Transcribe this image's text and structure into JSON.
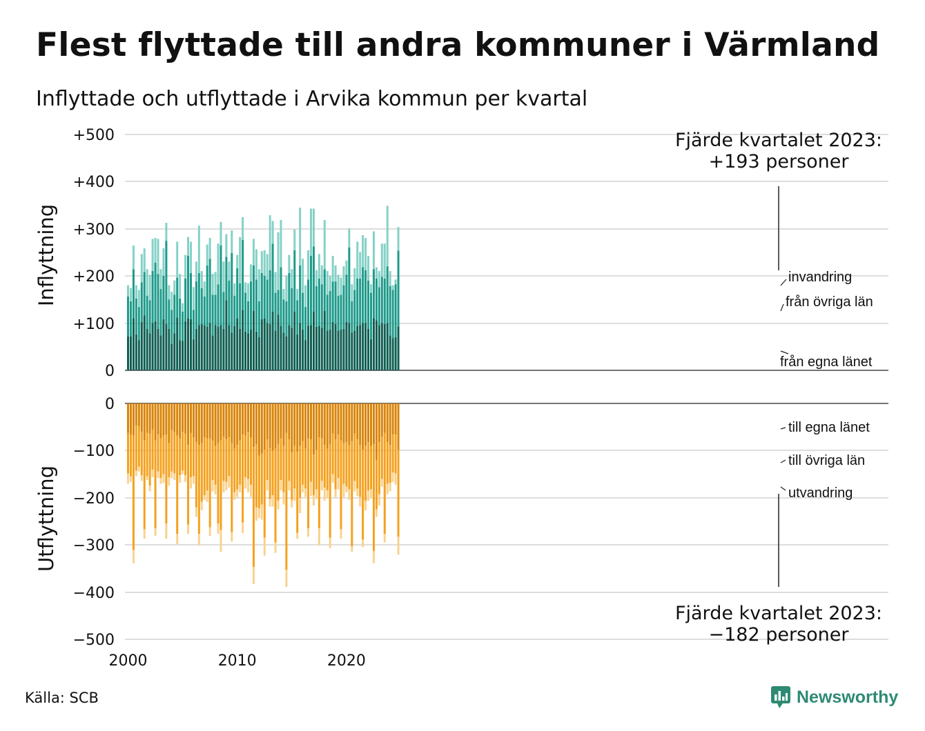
{
  "title": "Flest flyttade till andra kommuner i Värmland",
  "subtitle": "Inflyttade och utflyttade i Arvika kommun per kvartal",
  "source": "Källa: SCB",
  "brand": "Newsworthy",
  "colors": {
    "in_lan": "#0f5e52",
    "in_ovriga": "#1e9a8a",
    "in_invandring": "#85d1c6",
    "out_lan": "#d98407",
    "out_ovriga": "#f4a11e",
    "out_utvandring": "#f9d28f",
    "grid": "#dddddd",
    "brand": "#2e8a73"
  },
  "chart_data": {
    "type": "bar",
    "stacked": true,
    "x_start": "2000 Q1",
    "frequency": "quarterly",
    "x_ticks": [
      "2000",
      "2010",
      "2020"
    ],
    "grid": true,
    "panels": [
      {
        "ylabel": "Inflyttning",
        "y_ticks": [
          "+500",
          "+400",
          "+300",
          "+200",
          "+100",
          "0"
        ],
        "ylim": [
          0,
          500
        ],
        "series": [
          {
            "name": "från egna länet",
            "color_key": "in_lan",
            "values": [
              72,
              72,
              110,
              76,
              64,
              102,
              116,
              88,
              78,
              100,
              104,
              88,
              74,
              108,
              98,
              88,
              56,
              78,
              112,
              64,
              62,
              104,
              110,
              108,
              66,
              88,
              96,
              98,
              96,
              92,
              100,
              74,
              96,
              92,
              96,
              88,
              148,
              96,
              80,
              94,
              110,
              88,
              128,
              82,
              78,
              86,
              126,
              82,
              70,
              108,
              110,
              100,
              98,
              124,
              84,
              118,
              94,
              80,
              72,
              96,
              90,
              124,
              76,
              100,
              86,
              64,
              94,
              96,
              124,
              92,
              94,
              90,
              126,
              84,
              86,
              102,
              98,
              84,
              86,
              88,
              102,
              100,
              80,
              84,
              94,
              96,
              100,
              100,
              88,
              66,
              110,
              106,
              96,
              100,
              98,
              100,
              74,
              68,
              70,
              93
            ]
          },
          {
            "name": "från övriga län",
            "color_key": "in_ovriga",
            "values": [
              84,
              74,
              104,
              76,
              70,
              84,
              92,
              70,
              70,
              110,
              124,
              116,
              98,
              92,
              176,
              62,
              72,
              82,
              84,
              88,
              62,
              90,
              132,
              98,
              62,
              100,
              110,
              76,
              60,
              130,
              136,
              86,
              64,
              90,
              168,
              78,
              92,
              94,
              168,
              64,
              106,
              96,
              148,
              82,
              68,
              102,
              96,
              110,
              76,
              98,
              90,
              92,
              114,
              144,
              80,
              52,
              124,
              70,
              74,
              110,
              84,
              130,
              72,
              122,
              78,
              70,
              98,
              146,
              138,
              86,
              100,
              92,
              88,
              76,
              82,
              86,
              90,
              74,
              74,
              92,
              100,
              160,
              66,
              86,
              100,
              98,
              118,
              112,
              102,
              98,
              104,
              88,
              80,
              98,
              96,
              120,
              104,
              102,
              112,
              160
            ]
          },
          {
            "name": "invandring",
            "color_key": "in_invandring",
            "values": [
              24,
              28,
              50,
              28,
              36,
              60,
              50,
              56,
              54,
              68,
              52,
              74,
              42,
              58,
              38,
              30,
              38,
              30,
              76,
              52,
              18,
              50,
              40,
              66,
              48,
              42,
              100,
              36,
              32,
              44,
              44,
              44,
              48,
              86,
              50,
              64,
              48,
              40,
              48,
              26,
              28,
              98,
              48,
              22,
              38,
              36,
              56,
              64,
              68,
              46,
              54,
              54,
              116,
              48,
              44,
              122,
              100,
              22,
              54,
              38,
              40,
              44,
              24,
              122,
              72,
              46,
              62,
              100,
              80,
              34,
              52,
              40,
              104,
              50,
              32,
              54,
              34,
              44,
              36,
              40,
              30,
              40,
              36,
              46,
              78,
              56,
              68,
              68,
              52,
              18,
              80,
              24,
              34,
              70,
              74,
              128,
              32,
              10,
              10,
              50
            ]
          }
        ],
        "annotation": {
          "line1": "Fjärde kvartalet 2023:",
          "line2": "+193 personer"
        }
      },
      {
        "ylabel": "Utflyttning",
        "y_ticks": [
          "0",
          "−100",
          "−200",
          "−300",
          "−400",
          "−500"
        ],
        "ylim": [
          -500,
          0
        ],
        "series": [
          {
            "name": "till egna länet",
            "color_key": "out_lan",
            "values": [
              -62,
              -66,
              -68,
              -46,
              -48,
              -60,
              -78,
              -62,
              -64,
              -56,
              -78,
              -66,
              -74,
              -68,
              -66,
              -84,
              -56,
              -60,
              -68,
              -74,
              -60,
              -64,
              -88,
              -62,
              -72,
              -82,
              -88,
              -84,
              -72,
              -74,
              -74,
              -78,
              -90,
              -84,
              -78,
              -70,
              -76,
              -72,
              -84,
              -96,
              -88,
              -78,
              -66,
              -68,
              -60,
              -72,
              -92,
              -86,
              -110,
              -106,
              -98,
              -76,
              -94,
              -100,
              -96,
              -86,
              -74,
              -90,
              -62,
              -76,
              -104,
              -90,
              -102,
              -90,
              -80,
              -96,
              -74,
              -76,
              -108,
              -98,
              -72,
              -74,
              -88,
              -96,
              -86,
              -64,
              -76,
              -66,
              -78,
              -84,
              -82,
              -88,
              -80,
              -64,
              -76,
              -88,
              -98,
              -90,
              -82,
              -90,
              -86,
              -120,
              -82,
              -70,
              -62,
              -82,
              -88,
              -66,
              -66,
              -98
            ]
          },
          {
            "name": "till övriga län",
            "color_key": "out_ovriga",
            "values": [
              -86,
              -88,
              -242,
              -96,
              -86,
              -92,
              -188,
              -92,
              -110,
              -84,
              -186,
              -78,
              -84,
              -82,
              -188,
              -72,
              -88,
              -88,
              -208,
              -78,
              -82,
              -88,
              -168,
              -94,
              -82,
              -138,
              -188,
              -124,
              -122,
              -110,
              -188,
              -84,
              -82,
              -170,
              -190,
              -94,
              -90,
              -82,
              -188,
              -92,
              -94,
              -94,
              -186,
              -88,
              -100,
              -100,
              -254,
              -134,
              -112,
              -108,
              -186,
              -86,
              -108,
              -94,
              -198,
              -120,
              -88,
              -98,
              -290,
              -88,
              -100,
              -90,
              -172,
              -110,
              -92,
              -84,
              -190,
              -90,
              -86,
              -84,
              -192,
              -90,
              -90,
              -88,
              -198,
              -86,
              -106,
              -92,
              -188,
              -86,
              -94,
              -94,
              -222,
              -100,
              -104,
              -110,
              -190,
              -116,
              -102,
              -92,
              -226,
              -104,
              -110,
              -90,
              -214,
              -88,
              -80,
              -80,
              -82,
              -184
            ]
          },
          {
            "name": "utvandring",
            "color_key": "out_utvandring",
            "values": [
              -22,
              -12,
              -28,
              -12,
              -10,
              -12,
              -20,
              -8,
              -12,
              -16,
              -16,
              -14,
              -12,
              -18,
              -32,
              -18,
              -14,
              -14,
              -22,
              -16,
              -8,
              -14,
              -20,
              -24,
              -16,
              -20,
              -24,
              -18,
              -10,
              -24,
              -18,
              -24,
              -20,
              -22,
              -46,
              -24,
              -18,
              -24,
              -20,
              -16,
              -16,
              -16,
              -22,
              -24,
              -28,
              -26,
              -36,
              -28,
              -20,
              -32,
              -38,
              -22,
              -16,
              -24,
              -22,
              -18,
              -22,
              -26,
              -36,
              -20,
              -16,
              -26,
              -12,
              -32,
              -16,
              -18,
              -18,
              -30,
              -22,
              -20,
              -36,
              -20,
              -28,
              -16,
              -22,
              -18,
              -16,
              -24,
              -20,
              -28,
              -12,
              -22,
              -12,
              -22,
              -16,
              -20,
              -16,
              -20,
              -22,
              -18,
              -26,
              -16,
              -24,
              -16,
              -18,
              -22,
              -18,
              -20,
              -24,
              -38
            ]
          }
        ],
        "annotation": {
          "line1": "Fjärde kvartalet 2023:",
          "line2": "−182 personer"
        }
      }
    ]
  }
}
